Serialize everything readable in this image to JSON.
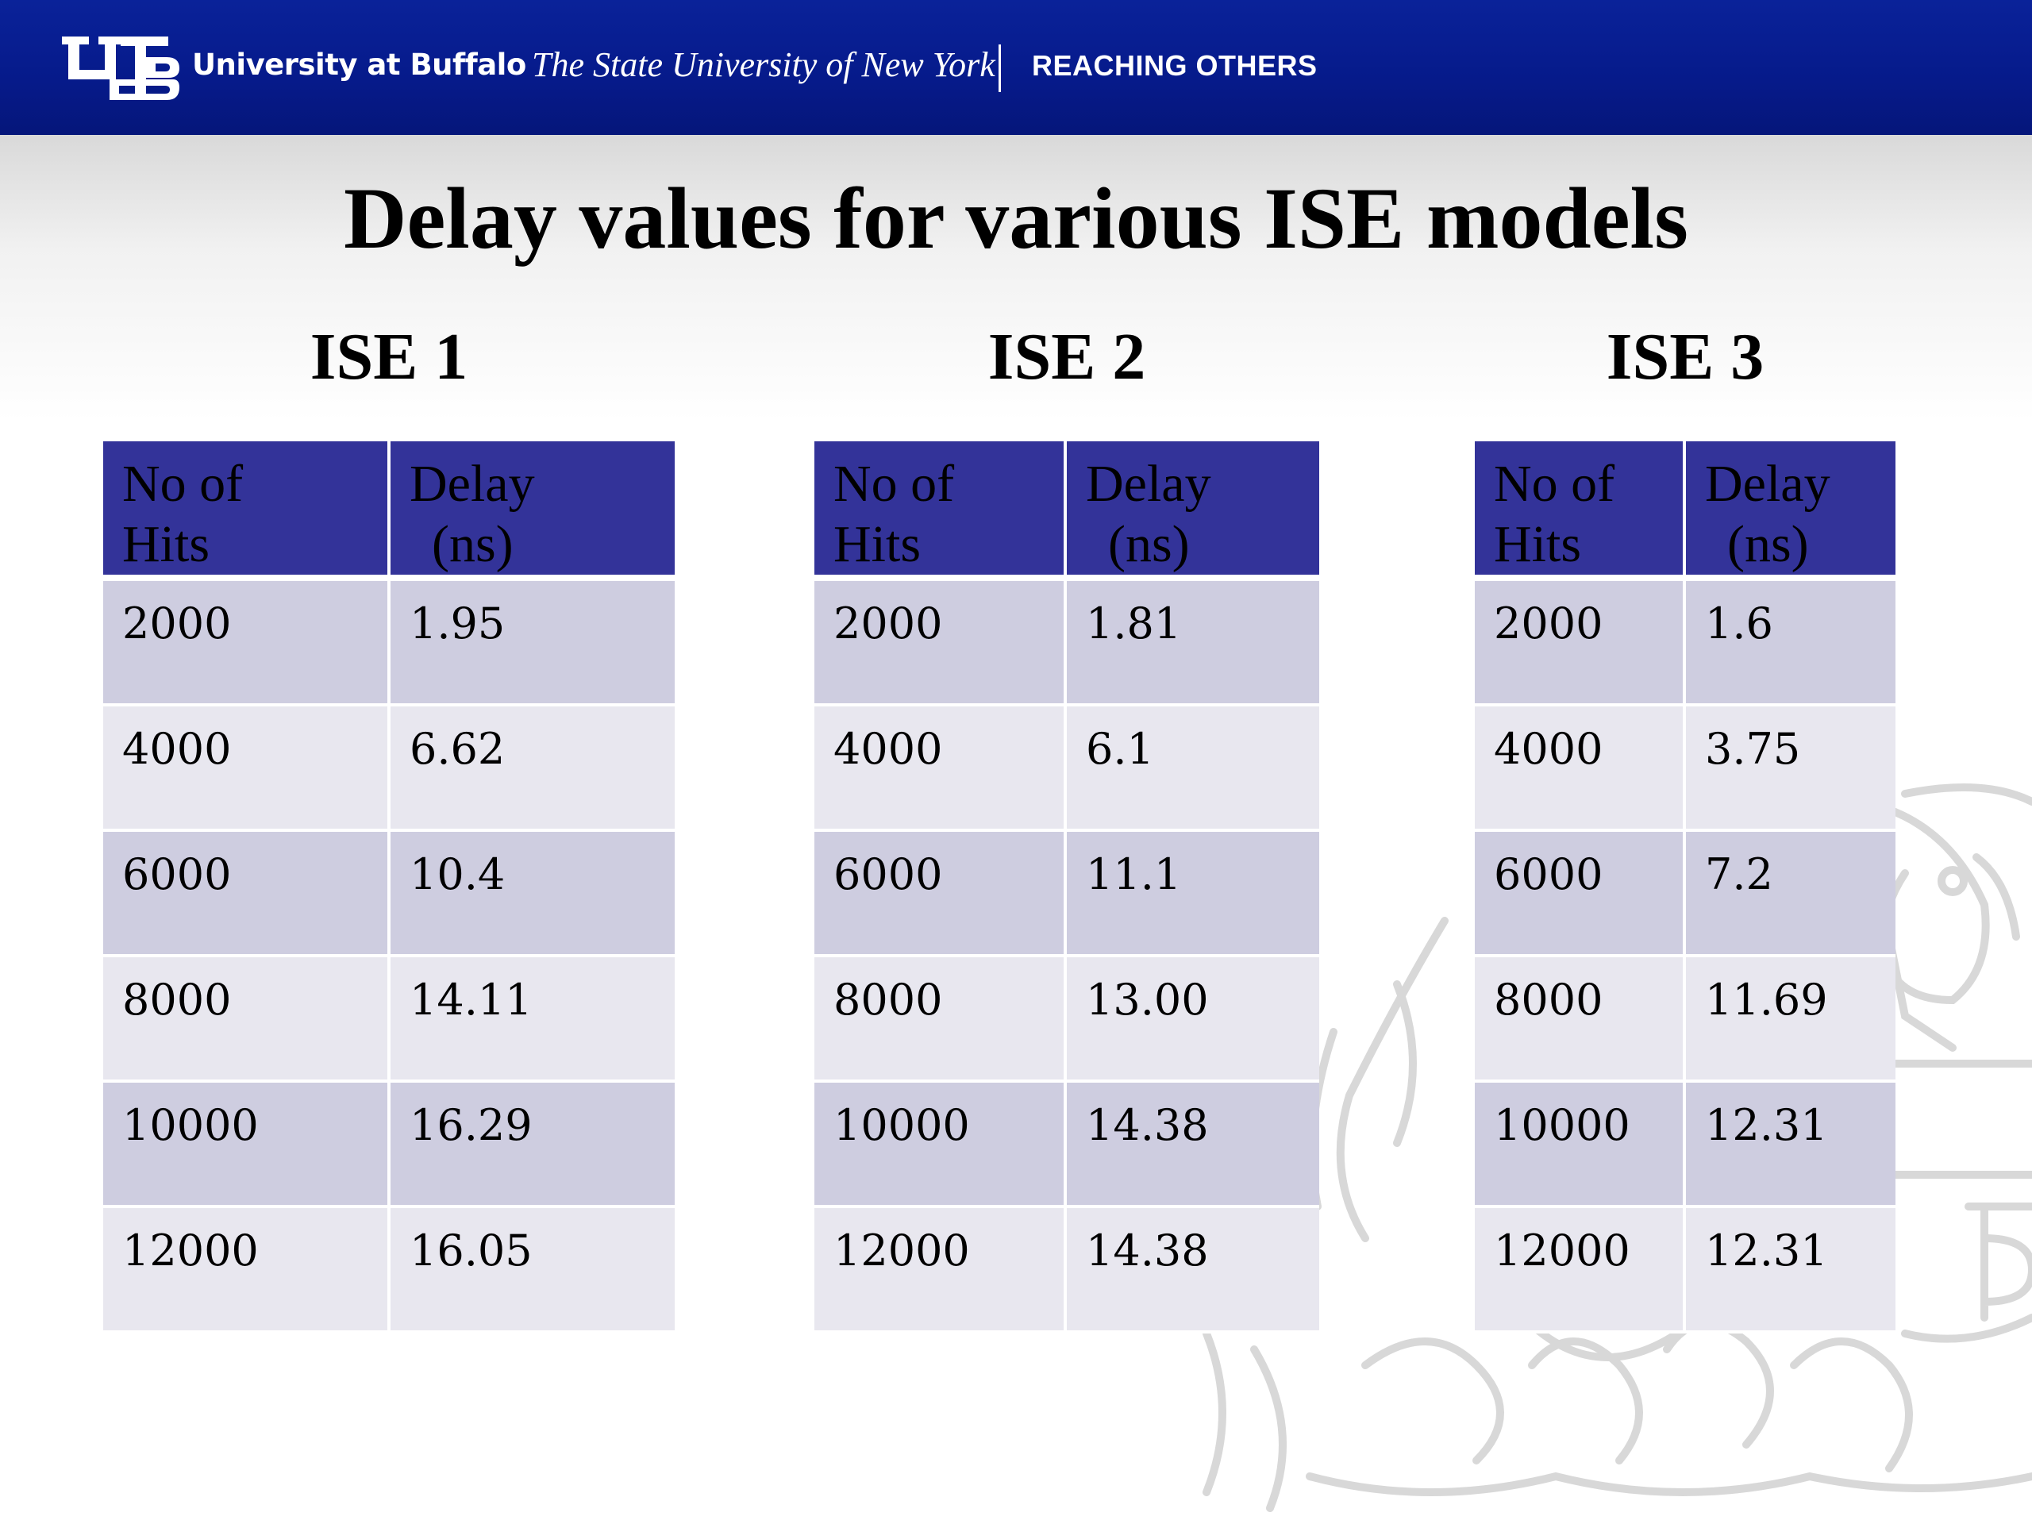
{
  "banner": {
    "university": "University at Buffalo",
    "system": "The State University of New York",
    "tagline": "REACHING OTHERS",
    "background_color": "#061a8a"
  },
  "title": "Delay values for various ISE models",
  "header_color": "#333399",
  "row_colors": [
    "#cecde0",
    "#e8e7ef"
  ],
  "tables": [
    {
      "heading": "ISE 1",
      "columns": [
        [
          "No of",
          "Hits"
        ],
        [
          "Delay",
          "(ns)"
        ]
      ],
      "rows": [
        [
          "2000",
          "1.95"
        ],
        [
          "4000",
          "6.62"
        ],
        [
          "6000",
          "10.4"
        ],
        [
          "8000",
          "14.11"
        ],
        [
          "10000",
          "16.29"
        ],
        [
          "12000",
          "16.05"
        ]
      ]
    },
    {
      "heading": "ISE 2",
      "columns": [
        [
          "No of",
          "Hits"
        ],
        [
          "Delay",
          "(ns)"
        ]
      ],
      "rows": [
        [
          "2000",
          "1.81"
        ],
        [
          "4000",
          "6.1"
        ],
        [
          "6000",
          "11.1"
        ],
        [
          "8000",
          "13.00"
        ],
        [
          "10000",
          "14.38"
        ],
        [
          "12000",
          "14.38"
        ]
      ]
    },
    {
      "heading": "ISE 3",
      "columns": [
        [
          "No of",
          "Hits"
        ],
        [
          "Delay",
          "(ns)"
        ]
      ],
      "rows": [
        [
          "2000",
          "1.6"
        ],
        [
          "4000",
          "3.75"
        ],
        [
          "6000",
          "7.2"
        ],
        [
          "8000",
          "11.69"
        ],
        [
          "10000",
          "12.31"
        ],
        [
          "12000",
          "12.31"
        ]
      ]
    }
  ]
}
